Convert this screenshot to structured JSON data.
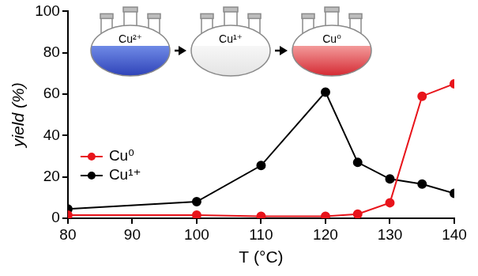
{
  "chart_data": {
    "type": "line",
    "x_label": "T (°C)",
    "y_label": "yield (%)",
    "x": [
      80,
      100,
      110,
      120,
      125,
      130,
      135,
      140
    ],
    "series": [
      {
        "name": "Cu⁰",
        "color": "#e8141b",
        "values": [
          1.5,
          1.5,
          1,
          1,
          2,
          7.5,
          59,
          65
        ]
      },
      {
        "name": "Cu¹⁺",
        "color": "#000000",
        "values": [
          4.5,
          8,
          25.5,
          61,
          27,
          19,
          16.5,
          12
        ]
      }
    ],
    "xlim": [
      80,
      140
    ],
    "xticks": [
      80,
      90,
      100,
      110,
      120,
      130,
      140
    ],
    "ylim": [
      0,
      100
    ],
    "yticks": [
      0,
      20,
      40,
      60,
      80,
      100
    ],
    "grid": false,
    "legend": "lower left",
    "marker": "circle",
    "line_style": "solid",
    "annotations": [
      "Cu²⁺",
      "Cu¹⁺",
      "Cu⁰"
    ]
  }
}
